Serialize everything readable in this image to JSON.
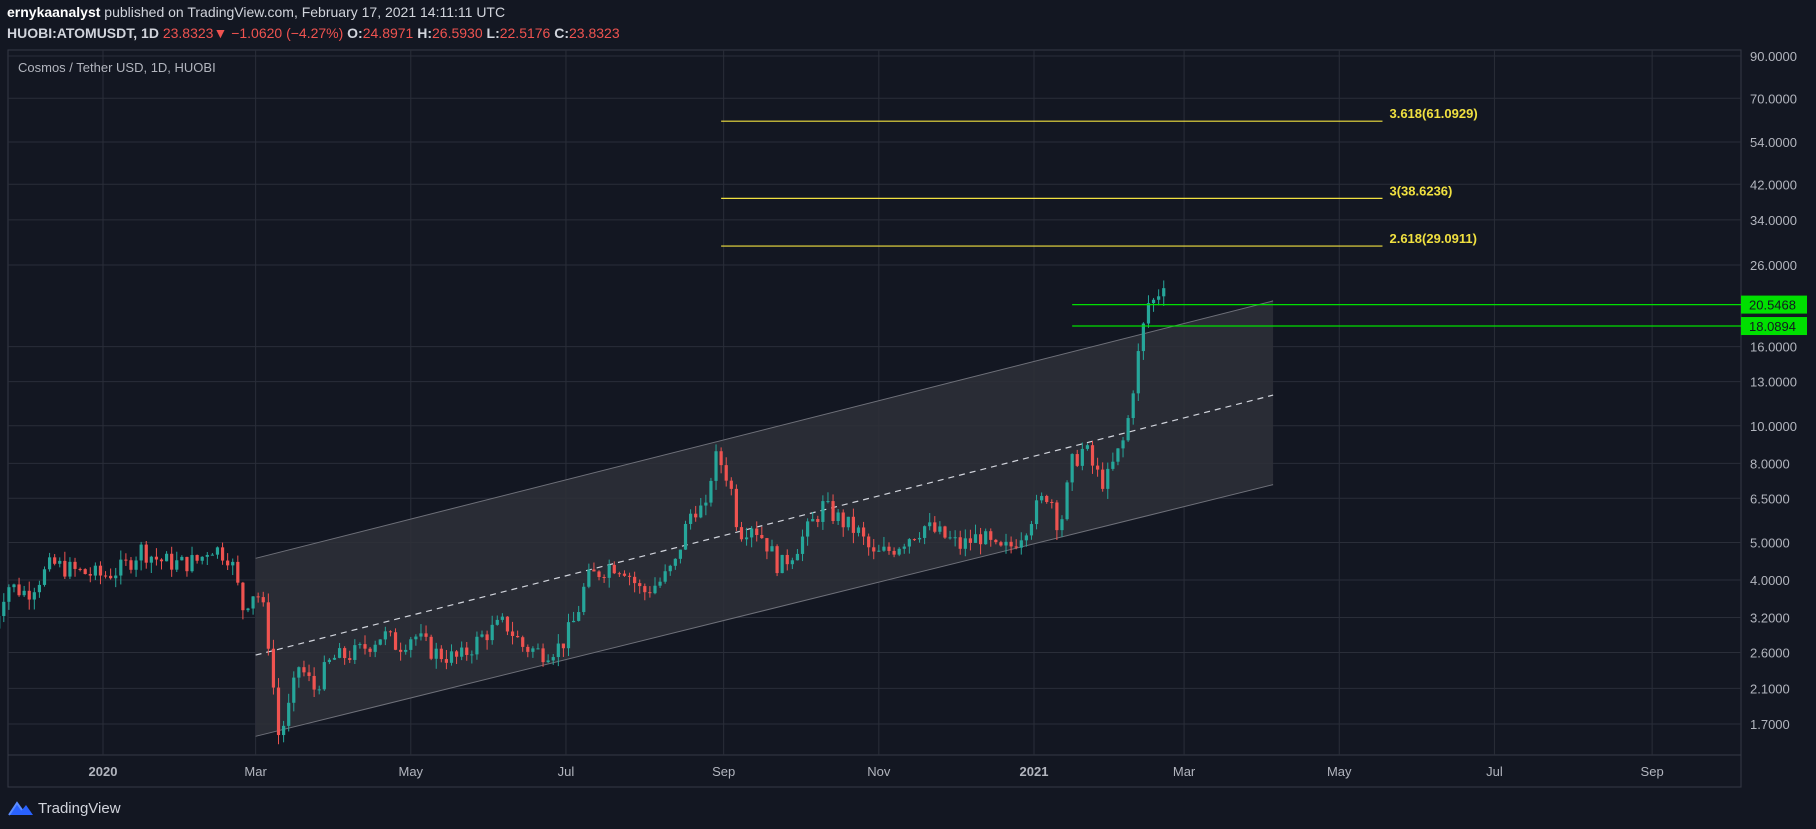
{
  "header": {
    "author": "ernykaanalyst",
    "published": "published on TradingView.com, February 17, 2021 14:11:11 UTC",
    "symbol": "HUOBI:ATOMUSDT, 1D",
    "last": "23.8323",
    "change_arrow": "▼",
    "change": "−1.0620 (−4.27%)",
    "o_label": "O:",
    "o_value": "24.8971",
    "h_label": "H:",
    "h_value": "26.5930",
    "l_label": "L:",
    "l_value": "22.5176",
    "c_label": "C:",
    "c_value": "23.8323"
  },
  "footer": {
    "logo_text": "TradingView",
    "logo_icon": "tradingview-logo-icon"
  },
  "colors": {
    "background": "#131722",
    "grid": "#2a2e39",
    "text": "#b2b5be",
    "up": "#26a69a",
    "down": "#ef5350",
    "fib": "#f0e040",
    "green_level": "#00e000",
    "channel_fill": "#2e3038",
    "channel_line": "#6e7079",
    "midline": "#d1d4dc"
  },
  "chart_data": {
    "type": "candlestick",
    "title": "Cosmos / Tether USD, 1D, HUOBI",
    "scale": "log",
    "ylim": [
      1.3,
      90
    ],
    "y_ticks": [
      {
        "value": 90,
        "label": "90.0000"
      },
      {
        "value": 70,
        "label": "70.0000"
      },
      {
        "value": 54,
        "label": "54.0000"
      },
      {
        "value": 42,
        "label": "42.0000"
      },
      {
        "value": 34,
        "label": "34.0000"
      },
      {
        "value": 26,
        "label": "26.0000"
      },
      {
        "value": 16,
        "label": "16.0000"
      },
      {
        "value": 13,
        "label": "13.0000"
      },
      {
        "value": 10,
        "label": "10.0000"
      },
      {
        "value": 8,
        "label": "8.0000"
      },
      {
        "value": 6.5,
        "label": "6.5000"
      },
      {
        "value": 5,
        "label": "5.0000"
      },
      {
        "value": 4,
        "label": "4.0000"
      },
      {
        "value": 3.2,
        "label": "3.2000"
      },
      {
        "value": 2.6,
        "label": "2.6000"
      },
      {
        "value": 2.1,
        "label": "2.1000"
      },
      {
        "value": 1.7,
        "label": "1.7000"
      }
    ],
    "x_range_days": [
      -43,
      620
    ],
    "x_ticks": [
      {
        "day": 0,
        "label": "2020",
        "bold": true
      },
      {
        "day": 60,
        "label": "Mar"
      },
      {
        "day": 121,
        "label": "May"
      },
      {
        "day": 182,
        "label": "Jul"
      },
      {
        "day": 244,
        "label": "Sep"
      },
      {
        "day": 305,
        "label": "Nov"
      },
      {
        "day": 366,
        "label": "2021",
        "bold": true
      },
      {
        "day": 425,
        "label": "Mar"
      },
      {
        "day": 486,
        "label": "May"
      },
      {
        "day": 547,
        "label": "Jul"
      },
      {
        "day": 609,
        "label": "Sep"
      }
    ],
    "price_anchors": [
      [
        -43,
        3.0
      ],
      [
        -38,
        3.9
      ],
      [
        -30,
        3.7
      ],
      [
        -20,
        4.4
      ],
      [
        -10,
        4.2
      ],
      [
        0,
        4.1
      ],
      [
        8,
        4.3
      ],
      [
        15,
        4.8
      ],
      [
        22,
        4.5
      ],
      [
        30,
        4.4
      ],
      [
        38,
        4.5
      ],
      [
        42,
        4.9
      ],
      [
        50,
        4.6
      ],
      [
        55,
        3.4
      ],
      [
        60,
        3.8
      ],
      [
        64,
        3.2
      ],
      [
        69,
        1.6
      ],
      [
        72,
        1.75
      ],
      [
        77,
        2.4
      ],
      [
        83,
        2.1
      ],
      [
        90,
        2.5
      ],
      [
        100,
        2.6
      ],
      [
        110,
        2.9
      ],
      [
        116,
        2.7
      ],
      [
        122,
        2.9
      ],
      [
        130,
        2.6
      ],
      [
        140,
        2.5
      ],
      [
        150,
        2.9
      ],
      [
        158,
        3.1
      ],
      [
        165,
        2.7
      ],
      [
        172,
        2.6
      ],
      [
        180,
        2.7
      ],
      [
        186,
        3.2
      ],
      [
        190,
        4.0
      ],
      [
        195,
        4.2
      ],
      [
        200,
        4.4
      ],
      [
        205,
        4.3
      ],
      [
        212,
        3.7
      ],
      [
        220,
        4.0
      ],
      [
        225,
        4.4
      ],
      [
        228,
        5.2
      ],
      [
        232,
        6.2
      ],
      [
        237,
        6.0
      ],
      [
        240,
        8.3
      ],
      [
        244,
        7.9
      ],
      [
        247,
        6.8
      ],
      [
        250,
        5.3
      ],
      [
        255,
        5.6
      ],
      [
        260,
        5.1
      ],
      [
        266,
        4.3
      ],
      [
        272,
        4.8
      ],
      [
        278,
        5.5
      ],
      [
        283,
        6.2
      ],
      [
        290,
        5.7
      ],
      [
        297,
        5.3
      ],
      [
        303,
        4.6
      ],
      [
        310,
        4.8
      ],
      [
        317,
        5.2
      ],
      [
        323,
        5.5
      ],
      [
        330,
        5.2
      ],
      [
        337,
        4.9
      ],
      [
        345,
        5.2
      ],
      [
        352,
        4.7
      ],
      [
        357,
        4.9
      ],
      [
        362,
        5.4
      ],
      [
        366,
        6.0
      ],
      [
        372,
        6.8
      ],
      [
        376,
        5.4
      ],
      [
        381,
        8.0
      ],
      [
        386,
        8.8
      ],
      [
        390,
        7.6
      ],
      [
        394,
        7.1
      ],
      [
        398,
        8.2
      ],
      [
        402,
        9.4
      ],
      [
        406,
        14.0
      ],
      [
        410,
        19.5
      ],
      [
        412,
        22.0
      ],
      [
        414,
        20.0
      ],
      [
        416,
        24.5
      ],
      [
        417,
        23.8
      ]
    ],
    "candle_step_days": 2,
    "channel": {
      "start_day": 60,
      "end_day": 460,
      "upper_start": 4.55,
      "upper_end": 21.0,
      "mid_start": 2.56,
      "mid_end": 12.0,
      "lower_start": 1.58,
      "lower_end": 7.05
    },
    "fib_levels": [
      {
        "value": 61.0929,
        "label": "3.618(61.0929)",
        "start_day": 243,
        "end_day": 503
      },
      {
        "value": 38.6236,
        "label": "3(38.6236)",
        "start_day": 243,
        "end_day": 503
      },
      {
        "value": 29.0911,
        "label": "2.618(29.0911)",
        "start_day": 243,
        "end_day": 503
      }
    ],
    "price_levels": [
      {
        "value": 20.5468,
        "label": "20.5468",
        "start_day": 381
      },
      {
        "value": 18.0894,
        "label": "18.0894",
        "start_day": 381
      }
    ]
  }
}
